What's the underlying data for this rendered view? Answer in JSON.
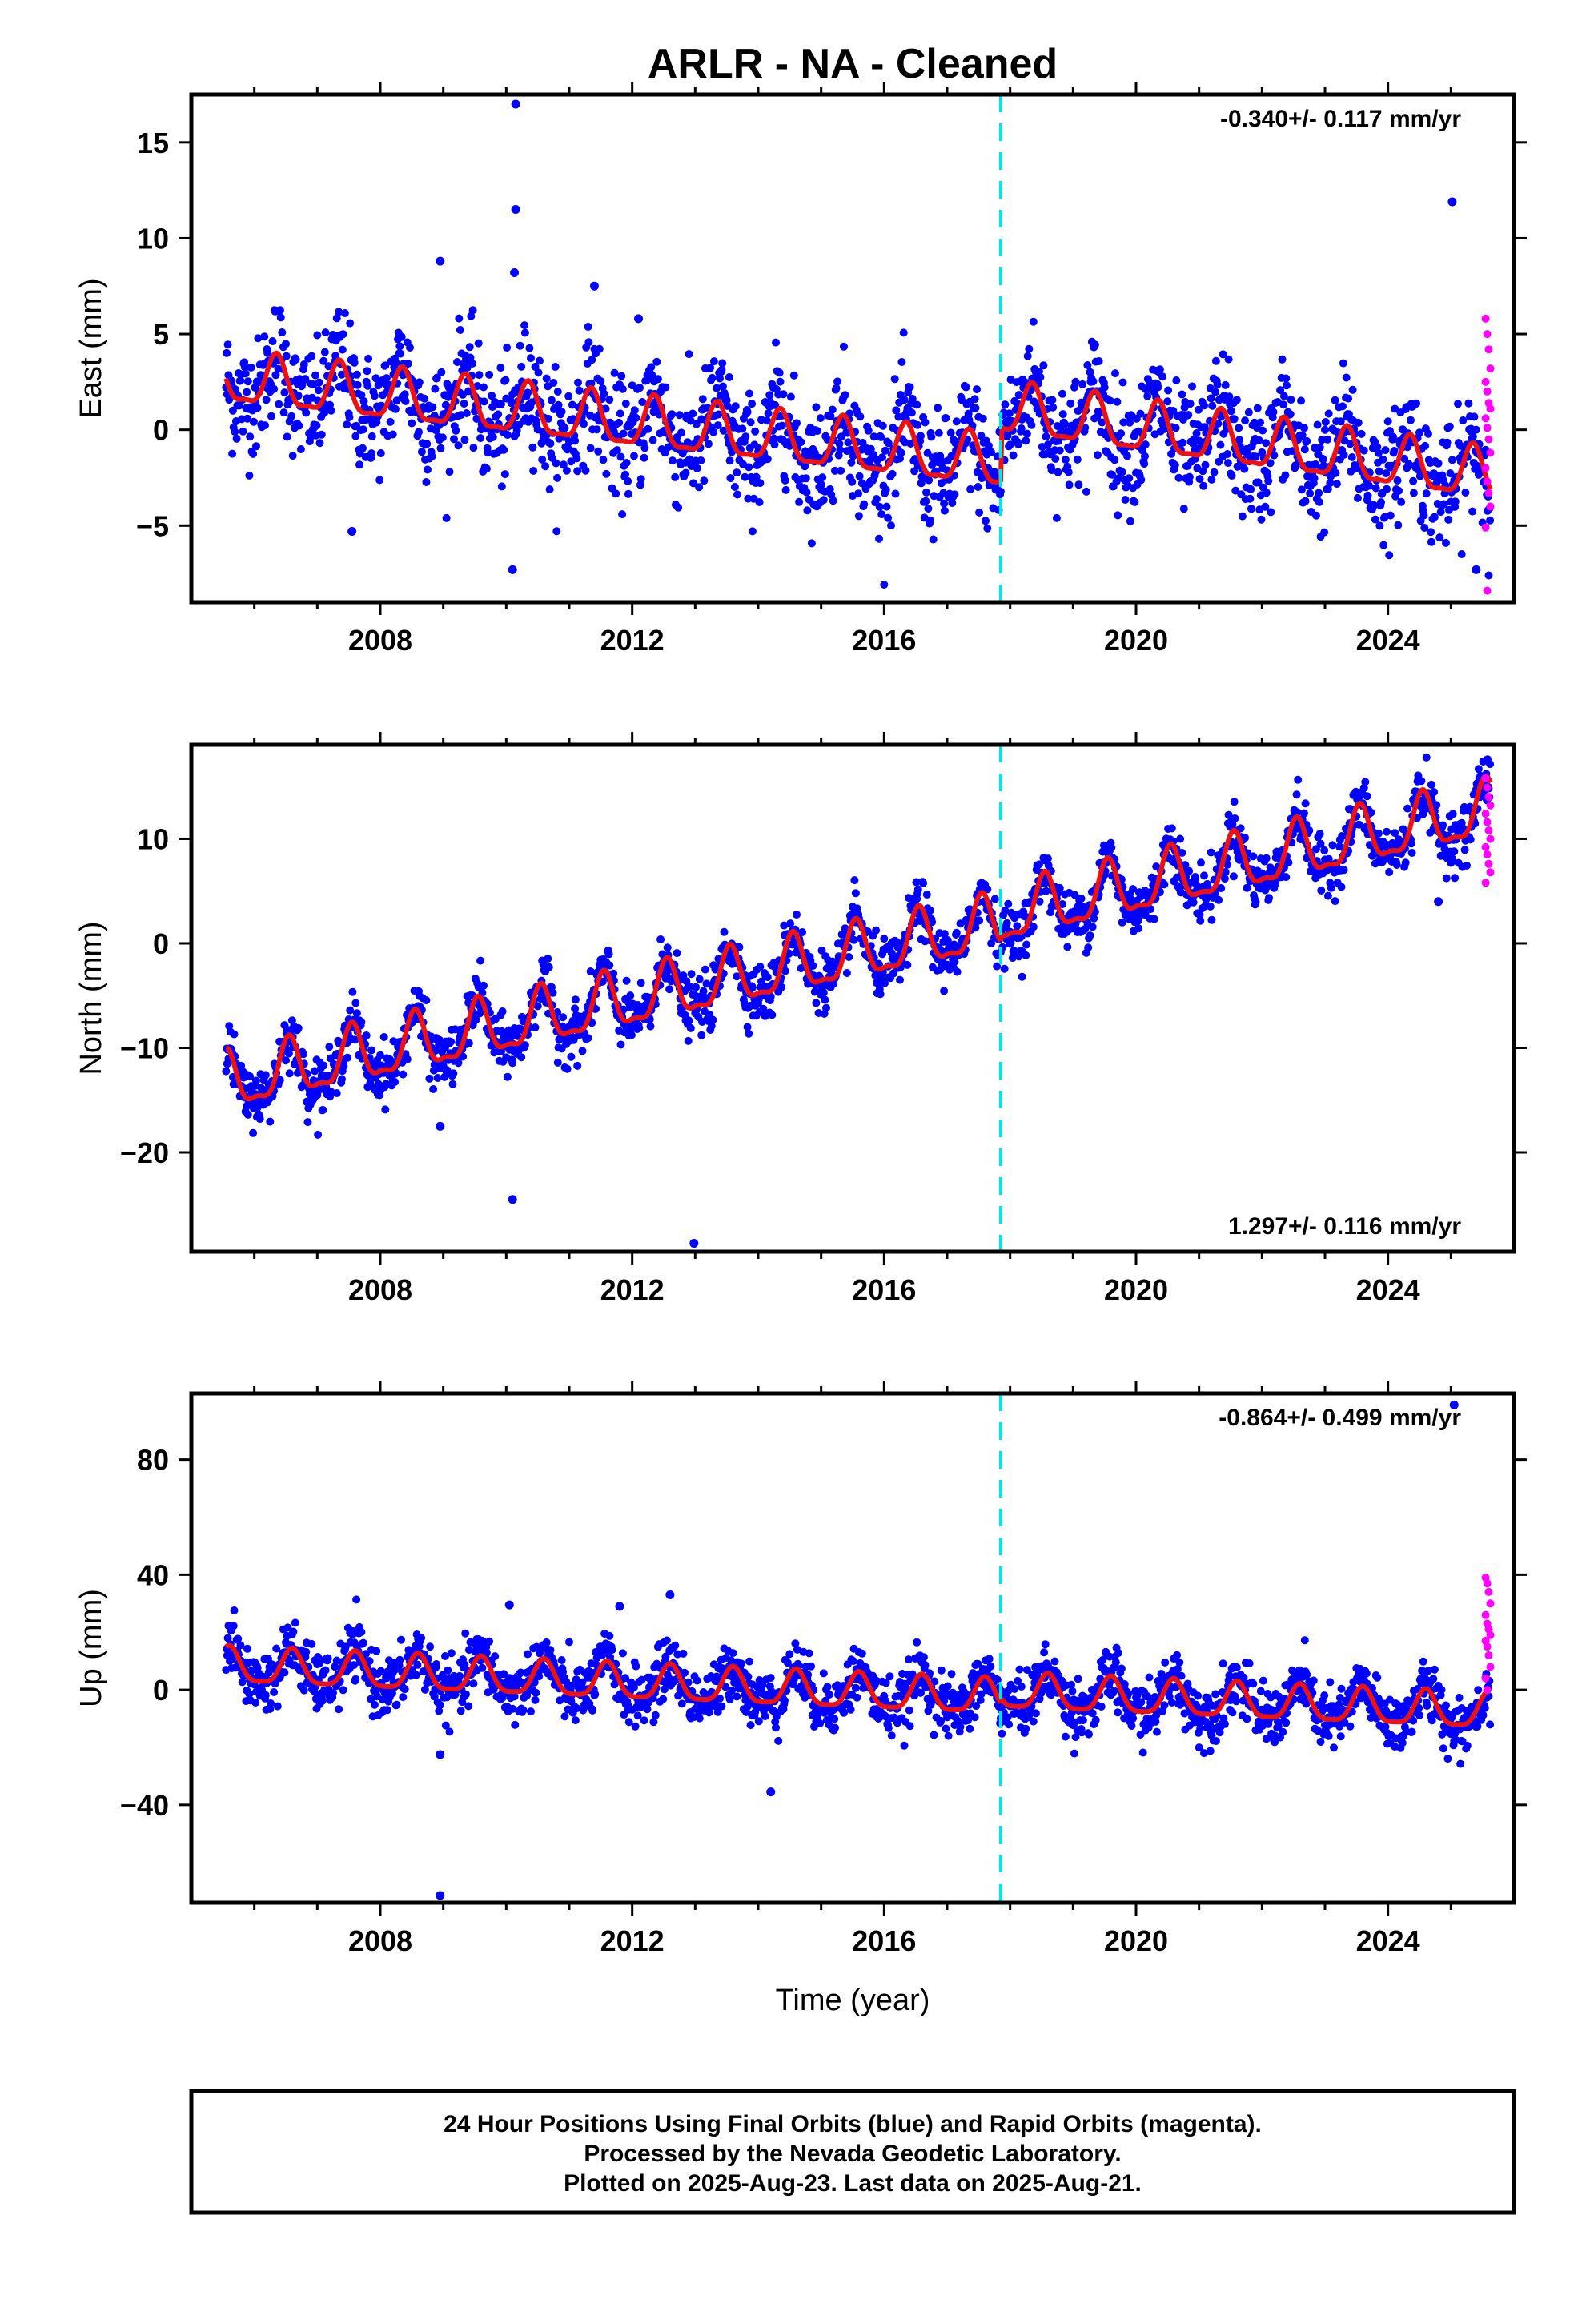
{
  "title": "ARLR  - NA - Cleaned",
  "colors": {
    "final_orbits": "#0000ff",
    "rapid_orbits": "#ff00ff",
    "model_fit": "#ee1111",
    "offset_line": "#00e5e5",
    "frame": "#000000"
  },
  "x_axis": {
    "label": "Time (year)",
    "ticks": [
      2008,
      2012,
      2016,
      2020,
      2024
    ],
    "range": [
      2005.0,
      2026.0
    ]
  },
  "offset_event_year": 2017.85,
  "chart_data": [
    {
      "type": "scatter",
      "panel": "east",
      "ylabel": "East (mm)",
      "yticks": [
        -5,
        0,
        5,
        10,
        15
      ],
      "xlim": [
        2005.0,
        2026.0
      ],
      "ylim": [
        -9,
        17.5
      ],
      "rate_text": "-0.340+/- 0.117 mm/yr",
      "rate_position": "top-right",
      "model": {
        "name": "model fit",
        "segments": [
          {
            "t_start": 2005.55,
            "t_end": 2017.85,
            "offset": 2.6,
            "trend": -0.36,
            "annual": 1.3,
            "phase": 0.35,
            "semiannual": 0.4
          },
          {
            "t_start": 2017.85,
            "t_end": 2025.64,
            "offset": 1.0,
            "trend": -0.45,
            "annual": 1.3,
            "phase": 0.35,
            "semiannual": 0.4
          }
        ]
      },
      "scatter_sd": 1.5,
      "rapid_values": [
        5.8,
        5.0,
        4.2,
        3.2,
        2.5,
        2.0,
        1.4,
        1.1,
        0.6,
        0.1,
        -0.5,
        -1.2,
        -2.0,
        -2.7,
        -3.3,
        -4.0,
        -5.1,
        -8.4
      ],
      "outliers": [
        {
          "x": 2010.15,
          "y": 17.0
        },
        {
          "x": 2010.15,
          "y": 11.5
        },
        {
          "x": 2010.13,
          "y": 8.2
        },
        {
          "x": 2008.95,
          "y": 8.8
        },
        {
          "x": 2011.4,
          "y": 7.5
        },
        {
          "x": 2012.1,
          "y": 5.8
        },
        {
          "x": 2025.02,
          "y": 11.9
        },
        {
          "x": 2010.1,
          "y": -7.3
        },
        {
          "x": 2007.55,
          "y": -5.3
        },
        {
          "x": 2025.4,
          "y": -7.3
        }
      ]
    },
    {
      "type": "scatter",
      "panel": "north",
      "ylabel": "North (mm)",
      "yticks": [
        -20,
        -10,
        0,
        10
      ],
      "xlim": [
        2005.0,
        2026.0
      ],
      "ylim": [
        -29.5,
        19
      ],
      "rate_text": "1.297+/- 0.116 mm/yr",
      "rate_position": "bottom-right",
      "model": {
        "name": "model fit",
        "segments": [
          {
            "t_start": 2005.55,
            "t_end": 2017.85,
            "offset": -13.5,
            "trend": 1.24,
            "annual": 2.6,
            "phase": 0.55,
            "semiannual": 0.9
          },
          {
            "t_start": 2017.85,
            "t_end": 2025.64,
            "offset": 2.5,
            "trend": 1.3,
            "annual": 2.6,
            "phase": 0.55,
            "semiannual": 0.9
          }
        ]
      },
      "scatter_sd": 1.3,
      "rapid_values": [
        15.8,
        14.9,
        14.0,
        13.2,
        12.4,
        11.6,
        10.8,
        10.0,
        9.2,
        8.5,
        7.6,
        6.8,
        5.8
      ],
      "outliers": [
        {
          "x": 2010.1,
          "y": -24.5
        },
        {
          "x": 2012.98,
          "y": -28.7
        },
        {
          "x": 2008.95,
          "y": -17.5
        },
        {
          "x": 2024.8,
          "y": 4.0
        }
      ]
    },
    {
      "type": "scatter",
      "panel": "up",
      "ylabel": "Up (mm)",
      "yticks": [
        -40,
        0,
        40,
        80
      ],
      "xlim": [
        2005.0,
        2026.0
      ],
      "ylim": [
        -74,
        103
      ],
      "rate_text": "-0.864+/- 0.499 mm/yr",
      "rate_position": "top-right",
      "model": {
        "name": "model fit",
        "segments": [
          {
            "t_start": 2005.55,
            "t_end": 2017.85,
            "offset": 8.0,
            "trend": -0.9,
            "annual": 6.0,
            "phase": 0.6,
            "semiannual": 1.5
          },
          {
            "t_start": 2017.85,
            "t_end": 2025.64,
            "offset": -1.0,
            "trend": -0.9,
            "annual": 6.0,
            "phase": 0.6,
            "semiannual": 1.5
          }
        ]
      },
      "scatter_sd": 5.0,
      "rapid_values": [
        39,
        37,
        34,
        30,
        26,
        23,
        21,
        19,
        17,
        15,
        12,
        8,
        4,
        0
      ],
      "outliers": [
        {
          "x": 2010.05,
          "y": 29.5
        },
        {
          "x": 2011.8,
          "y": 29.0
        },
        {
          "x": 2012.6,
          "y": 33.0
        },
        {
          "x": 2014.2,
          "y": -35.5
        },
        {
          "x": 2008.95,
          "y": -71.5
        },
        {
          "x": 2008.95,
          "y": -22.5
        },
        {
          "x": 2025.05,
          "y": 99.0
        }
      ]
    }
  ],
  "footer": {
    "line1": "24 Hour Positions Using Final Orbits (blue) and Rapid Orbits (magenta).",
    "line2": "Processed by the Nevada Geodetic Laboratory.",
    "line3": "Plotted on 2025-Aug-23. Last data on 2025-Aug-21."
  }
}
